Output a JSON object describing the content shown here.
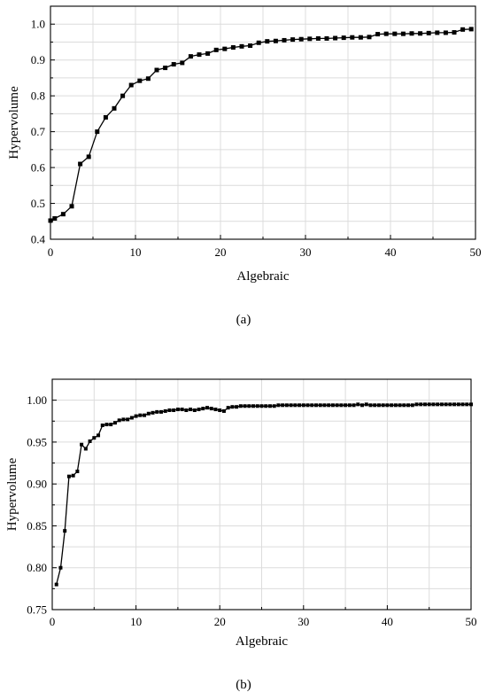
{
  "chart_data": [
    {
      "type": "line",
      "panel_label": "(a)",
      "xlabel": "Algebraic",
      "ylabel": "Hypervolume",
      "xlim": [
        0,
        50
      ],
      "ylim": [
        0.4,
        1.05
      ],
      "xticks": [
        "0",
        "10",
        "20",
        "30",
        "40",
        "50"
      ],
      "yticks": [
        "0.4",
        "0.5",
        "0.6",
        "0.7",
        "0.8",
        "0.9",
        "1.0"
      ],
      "grid": true,
      "series": [
        {
          "x": [
            0,
            0.5,
            1.5,
            2.5,
            3.5,
            4.5,
            5.5,
            6.5,
            7.5,
            8.5,
            9.5,
            10.5,
            11.5,
            12.5,
            13.5,
            14.5,
            15.5,
            16.5,
            17.5,
            18.5,
            19.5,
            20.5,
            21.5,
            22.5,
            23.5,
            24.5,
            25.5,
            26.5,
            27.5,
            28.5,
            29.5,
            30.5,
            31.5,
            32.5,
            33.5,
            34.5,
            35.5,
            36.5,
            37.5,
            38.5,
            39.5,
            40.5,
            41.5,
            42.5,
            43.5,
            44.5,
            45.5,
            46.5,
            47.5,
            48.5,
            49.5
          ],
          "y": [
            0.452,
            0.458,
            0.47,
            0.492,
            0.61,
            0.63,
            0.7,
            0.74,
            0.765,
            0.8,
            0.83,
            0.842,
            0.848,
            0.872,
            0.878,
            0.888,
            0.892,
            0.91,
            0.915,
            0.918,
            0.928,
            0.931,
            0.935,
            0.938,
            0.94,
            0.948,
            0.952,
            0.953,
            0.955,
            0.957,
            0.958,
            0.959,
            0.96,
            0.96,
            0.961,
            0.962,
            0.963,
            0.963,
            0.964,
            0.972,
            0.973,
            0.973,
            0.973,
            0.974,
            0.974,
            0.975,
            0.976,
            0.976,
            0.977,
            0.985,
            0.986
          ]
        }
      ]
    },
    {
      "type": "line",
      "panel_label": "(b)",
      "xlabel": "Algebraic",
      "ylabel": "Hypervolume",
      "xlim": [
        0,
        50
      ],
      "ylim": [
        0.75,
        1.025
      ],
      "xticks": [
        "0",
        "10",
        "20",
        "30",
        "40",
        "50"
      ],
      "yticks": [
        "0.75",
        "0.80",
        "0.85",
        "0.90",
        "0.95",
        "1.00"
      ],
      "grid": true,
      "series": [
        {
          "x": [
            0.5,
            1.0,
            1.5,
            2.0,
            2.5,
            3.0,
            3.5,
            4.0,
            4.5,
            5.0,
            5.5,
            6.0,
            6.5,
            7.0,
            7.5,
            8.0,
            8.5,
            9.0,
            9.5,
            10.0,
            10.5,
            11.0,
            11.5,
            12.0,
            12.5,
            13.0,
            13.5,
            14.0,
            14.5,
            15.0,
            15.5,
            16.0,
            16.5,
            17.0,
            17.5,
            18.0,
            18.5,
            19.0,
            19.5,
            20.0,
            20.5,
            21.0,
            21.5,
            22.0,
            22.5,
            23.0,
            23.5,
            24.0,
            24.5,
            25.0,
            25.5,
            26.0,
            26.5,
            27.0,
            27.5,
            28.0,
            28.5,
            29.0,
            29.5,
            30.0,
            30.5,
            31.0,
            31.5,
            32.0,
            32.5,
            33.0,
            33.5,
            34.0,
            34.5,
            35.0,
            35.5,
            36.0,
            36.5,
            37.0,
            37.5,
            38.0,
            38.5,
            39.0,
            39.5,
            40.0,
            40.5,
            41.0,
            41.5,
            42.0,
            42.5,
            43.0,
            43.5,
            44.0,
            44.5,
            45.0,
            45.5,
            46.0,
            46.5,
            47.0,
            47.5,
            48.0,
            48.5,
            49.0,
            49.5,
            50.0
          ],
          "y": [
            0.78,
            0.8,
            0.844,
            0.909,
            0.91,
            0.915,
            0.947,
            0.942,
            0.951,
            0.955,
            0.958,
            0.97,
            0.971,
            0.971,
            0.973,
            0.976,
            0.977,
            0.977,
            0.979,
            0.981,
            0.982,
            0.982,
            0.984,
            0.985,
            0.986,
            0.986,
            0.987,
            0.988,
            0.988,
            0.989,
            0.989,
            0.988,
            0.989,
            0.988,
            0.989,
            0.99,
            0.991,
            0.99,
            0.989,
            0.988,
            0.987,
            0.991,
            0.992,
            0.992,
            0.993,
            0.993,
            0.993,
            0.993,
            0.993,
            0.993,
            0.993,
            0.993,
            0.993,
            0.994,
            0.994,
            0.994,
            0.994,
            0.994,
            0.994,
            0.994,
            0.994,
            0.994,
            0.994,
            0.994,
            0.994,
            0.994,
            0.994,
            0.994,
            0.994,
            0.994,
            0.994,
            0.994,
            0.995,
            0.994,
            0.995,
            0.994,
            0.994,
            0.994,
            0.994,
            0.994,
            0.994,
            0.994,
            0.994,
            0.994,
            0.994,
            0.994,
            0.995,
            0.995,
            0.995,
            0.995,
            0.995,
            0.995,
            0.995,
            0.995,
            0.995,
            0.995,
            0.995,
            0.995,
            0.995,
            0.995
          ]
        }
      ]
    }
  ]
}
